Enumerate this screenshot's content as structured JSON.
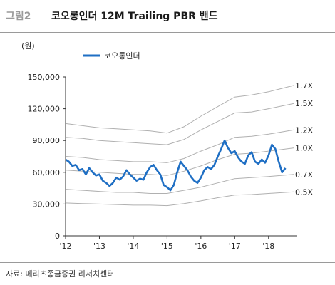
{
  "figure": {
    "number": "그림2",
    "title": "코오롱인더 12M Trailing PBR 밴드"
  },
  "source": "자료: 메리츠종금증권 리서치센터",
  "chart_data": {
    "type": "line",
    "ylabel": "(원)",
    "ylim": [
      0,
      150000
    ],
    "y_ticks": [
      0,
      30000,
      60000,
      90000,
      120000,
      150000
    ],
    "y_tick_labels": [
      "0",
      "30,000",
      "60,000",
      "90,000",
      "120,000",
      "150,000"
    ],
    "x_range": [
      2012.0,
      2018.7
    ],
    "x_ticks": [
      2012,
      2013,
      2014,
      2015,
      2016,
      2017,
      2018
    ],
    "x_tick_labels": [
      "'12",
      "'13",
      "'14",
      "'15",
      "'16",
      "'17",
      "'18"
    ],
    "legend": {
      "label": "코오롱인더",
      "position": "top-left"
    },
    "price_color": "#1f6fc4",
    "band_color": "#b0b0b0",
    "price": {
      "name": "코오롱인더",
      "x": [
        2012.0,
        2012.1,
        2012.2,
        2012.3,
        2012.4,
        2012.5,
        2012.6,
        2012.7,
        2012.8,
        2012.9,
        2013.0,
        2013.1,
        2013.2,
        2013.3,
        2013.4,
        2013.5,
        2013.6,
        2013.7,
        2013.8,
        2013.9,
        2014.0,
        2014.1,
        2014.2,
        2014.3,
        2014.4,
        2014.5,
        2014.6,
        2014.7,
        2014.8,
        2014.9,
        2015.0,
        2015.1,
        2015.2,
        2015.3,
        2015.4,
        2015.5,
        2015.6,
        2015.7,
        2015.8,
        2015.9,
        2016.0,
        2016.1,
        2016.2,
        2016.3,
        2016.4,
        2016.5,
        2016.6,
        2016.7,
        2016.8,
        2016.9,
        2017.0,
        2017.1,
        2017.2,
        2017.3,
        2017.4,
        2017.5,
        2017.6,
        2017.7,
        2017.8,
        2017.9,
        2018.0,
        2018.1,
        2018.2,
        2018.3,
        2018.4,
        2018.5
      ],
      "y": [
        72000,
        70000,
        66000,
        67000,
        62000,
        63000,
        58000,
        64000,
        60000,
        57000,
        58000,
        52000,
        50000,
        47000,
        50000,
        55000,
        53000,
        56000,
        62000,
        58000,
        55000,
        52000,
        54000,
        53000,
        60000,
        65000,
        67000,
        62000,
        58000,
        48000,
        46000,
        43000,
        48000,
        60000,
        70000,
        66000,
        62000,
        56000,
        52000,
        50000,
        55000,
        62000,
        65000,
        63000,
        67000,
        75000,
        82000,
        90000,
        83000,
        78000,
        80000,
        74000,
        70000,
        68000,
        76000,
        79000,
        70000,
        68000,
        72000,
        69000,
        76000,
        86000,
        82000,
        70000,
        60000,
        64000
      ]
    },
    "bands": [
      {
        "name": "1.7X",
        "x": [
          2012.0,
          2012.5,
          2013.0,
          2013.5,
          2014.0,
          2014.5,
          2015.0,
          2015.5,
          2016.0,
          2016.5,
          2017.0,
          2017.5,
          2018.0,
          2018.75
        ],
        "y": [
          106000,
          104000,
          102000,
          101000,
          100000,
          99000,
          97000,
          103000,
          113000,
          122000,
          131000,
          133000,
          136000,
          142000
        ]
      },
      {
        "name": "1.5X",
        "x": [
          2012.0,
          2012.5,
          2013.0,
          2013.5,
          2014.0,
          2014.5,
          2015.0,
          2015.5,
          2016.0,
          2016.5,
          2017.0,
          2017.5,
          2018.0,
          2018.75
        ],
        "y": [
          93000,
          92000,
          90000,
          89000,
          88000,
          87000,
          86000,
          91000,
          100000,
          108000,
          116000,
          117000,
          120000,
          125000
        ]
      },
      {
        "name": "1.2X",
        "x": [
          2012.0,
          2012.5,
          2013.0,
          2013.5,
          2014.0,
          2014.5,
          2015.0,
          2015.5,
          2016.0,
          2016.5,
          2017.0,
          2017.5,
          2018.0,
          2018.75
        ],
        "y": [
          75000,
          74000,
          72000,
          71000,
          70000,
          70000,
          69000,
          73000,
          80000,
          86000,
          93000,
          94000,
          96000,
          100000
        ]
      },
      {
        "name": "1.0X",
        "x": [
          2012.0,
          2012.5,
          2013.0,
          2013.5,
          2014.0,
          2014.5,
          2015.0,
          2015.5,
          2016.0,
          2016.5,
          2017.0,
          2017.5,
          2018.0,
          2018.75
        ],
        "y": [
          62000,
          61000,
          60000,
          59000,
          58000,
          58000,
          57000,
          61000,
          66000,
          72000,
          77000,
          78000,
          80000,
          83000
        ]
      },
      {
        "name": "0.7X",
        "x": [
          2012.0,
          2012.5,
          2013.0,
          2013.5,
          2014.0,
          2014.5,
          2015.0,
          2015.5,
          2016.0,
          2016.5,
          2017.0,
          2017.5,
          2018.0,
          2018.75
        ],
        "y": [
          44000,
          43000,
          42000,
          41000,
          41000,
          40000,
          40000,
          43000,
          46000,
          50000,
          54000,
          55000,
          56000,
          58000
        ]
      },
      {
        "name": "0.5X",
        "x": [
          2012.0,
          2012.5,
          2013.0,
          2013.5,
          2014.0,
          2014.5,
          2015.0,
          2015.5,
          2016.0,
          2016.5,
          2017.0,
          2017.5,
          2018.0,
          2018.75
        ],
        "y": [
          31000,
          30500,
          30000,
          29500,
          29000,
          29000,
          28500,
          30500,
          33000,
          36000,
          38500,
          39000,
          40000,
          41500
        ]
      }
    ]
  }
}
